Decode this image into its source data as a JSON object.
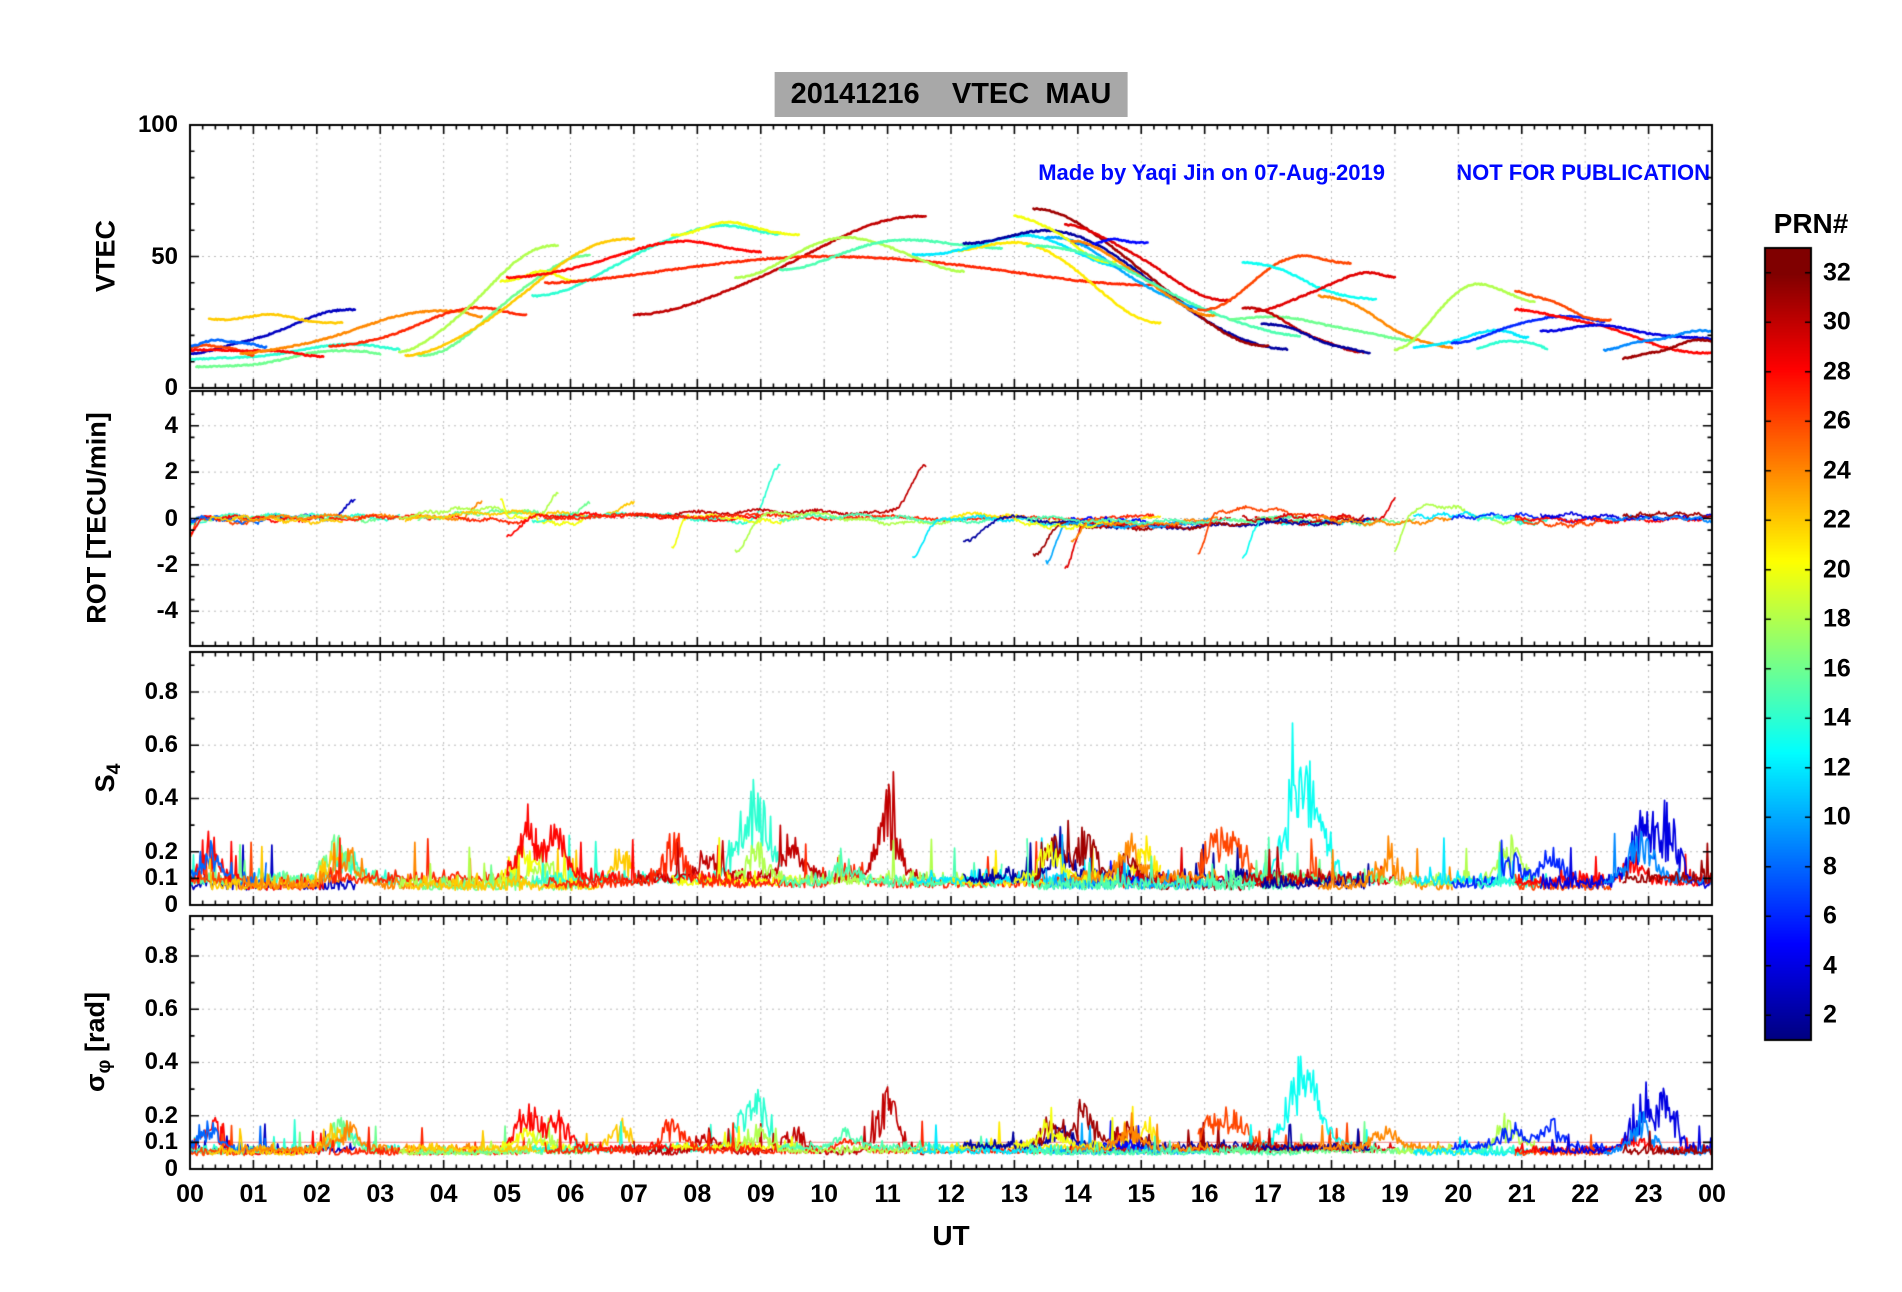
{
  "header": {
    "title": "20141216    VTEC  MAU",
    "made_by": "Made by Yaqi Jin on 07-Aug-2019",
    "warning": "NOT FOR PUBLICATION",
    "annotation_color": "#0008ff"
  },
  "chart_data": {
    "type": "line",
    "station": "MAU",
    "date": "20141216",
    "xlabel": "UT",
    "x_range": [
      0,
      24
    ],
    "x_tick_labels": [
      "00",
      "01",
      "02",
      "03",
      "04",
      "05",
      "06",
      "07",
      "08",
      "09",
      "10",
      "11",
      "12",
      "13",
      "14",
      "15",
      "16",
      "17",
      "18",
      "19",
      "20",
      "21",
      "22",
      "23",
      "00"
    ],
    "grid": true,
    "panels": [
      {
        "name": "vtec",
        "ylabel": "VTEC",
        "ylim": [
          0,
          100
        ],
        "yticks": [
          0,
          50,
          100
        ],
        "yminor": 10
      },
      {
        "name": "rot",
        "ylabel": "ROT [TECU/min]",
        "ylim": [
          -5.5,
          5.5
        ],
        "yticks": [
          -4,
          -2,
          0,
          2,
          4
        ],
        "yminor": 1
      },
      {
        "name": "s4",
        "ylabel_main": "S",
        "ylabel_sub": "4",
        "ylim": [
          0,
          0.95
        ],
        "yticks": [
          0,
          0.1,
          0.2,
          0.4,
          0.6,
          0.8
        ],
        "yminor": 0.1
      },
      {
        "name": "sigma_phi",
        "ylabel_main": "σ",
        "ylabel_sub": "φ",
        "ylabel_unit": " [rad]",
        "ylim": [
          0,
          0.95
        ],
        "yticks": [
          0,
          0.1,
          0.2,
          0.4,
          0.6,
          0.8
        ],
        "yminor": 0.1,
        "threshold": 0.1,
        "threshold_color": "#f0a0a0"
      }
    ],
    "colorbar": {
      "label": "PRN#",
      "colormap": "jet",
      "vmin": 1,
      "vmax": 33,
      "ticks": [
        2,
        4,
        6,
        8,
        10,
        12,
        14,
        16,
        18,
        20,
        22,
        24,
        26,
        28,
        30,
        32
      ]
    },
    "passes": [
      {
        "prn": 3,
        "t": [
          0,
          2.6
        ],
        "v": [
          13,
          30,
          30
        ],
        "tp": 1,
        "rs": [
          "e",
          0.9
        ]
      },
      {
        "prn": 14,
        "t": [
          0,
          3.3
        ],
        "v": [
          11,
          16,
          15
        ],
        "tp": 0.85,
        "rs": [
          "s",
          -0.35
        ],
        "s4": [
          [
            0.75,
            0.12
          ]
        ]
      },
      {
        "prn": 16,
        "t": [
          0.1,
          3.0
        ],
        "v": [
          8,
          14,
          13
        ],
        "tp": 0.9,
        "s4": [
          [
            0.78,
            0.2
          ]
        ]
      },
      {
        "prn": 26,
        "t": [
          0,
          1.0
        ],
        "v": [
          15,
          16,
          13
        ],
        "tp": 0.5,
        "rs": [
          "s",
          -0.7
        ]
      },
      {
        "prn": 28,
        "t": [
          0,
          2.1
        ],
        "v": [
          14,
          15,
          12
        ],
        "tp": 0.4,
        "rs": [
          "s",
          -0.6
        ],
        "s4": [
          [
            0.15,
            0.2
          ]
        ]
      },
      {
        "prn": 8,
        "t": [
          0,
          1.2
        ],
        "v": [
          16,
          18,
          16
        ],
        "tp": 0.5,
        "s4": [
          [
            0.25,
            0.16
          ]
        ]
      },
      {
        "prn": 22,
        "t": [
          0.3,
          2.4
        ],
        "v": [
          26,
          28,
          24
        ],
        "tp": 0.5,
        "s4": [
          [
            0.95,
            0.18
          ]
        ]
      },
      {
        "prn": 24,
        "t": [
          0.8,
          4.6
        ],
        "v": [
          13,
          30,
          28
        ],
        "tp": 0.9,
        "rs": [
          "e",
          0.7
        ],
        "s4": [
          [
            0.45,
            0.15
          ]
        ]
      },
      {
        "prn": 27,
        "t": [
          2.2,
          5.3
        ],
        "v": [
          16,
          30,
          28
        ],
        "tp": 0.8
      },
      {
        "prn": 18,
        "t": [
          3.3,
          5.8
        ],
        "v": [
          14,
          55,
          55
        ],
        "tp": 1,
        "rs": [
          "e",
          1.0
        ],
        "s4": [
          [
            0.9,
            0.12
          ]
        ]
      },
      {
        "prn": 16,
        "t": [
          3.6,
          6.3
        ],
        "v": [
          13,
          50,
          50
        ],
        "tp": 1,
        "rs": [
          "e",
          0.8
        ]
      },
      {
        "prn": 22,
        "t": [
          3.4,
          7.0
        ],
        "v": [
          13,
          57,
          57
        ],
        "tp": 1,
        "rs": [
          "e",
          0.8
        ],
        "s4": [
          [
            0.95,
            0.15
          ]
        ]
      },
      {
        "prn": 20,
        "t": [
          4.9,
          6.2
        ],
        "v": [
          40,
          44,
          41
        ],
        "tp": 0.5,
        "rs": [
          "s",
          0.9
        ],
        "s4": [
          [
            0.3,
            0.12
          ]
        ]
      },
      {
        "prn": 14,
        "t": [
          5.4,
          9.3
        ],
        "v": [
          35,
          62,
          58
        ],
        "tp": 0.75,
        "rs": [
          "e",
          2.3
        ],
        "s4": [
          [
            0.92,
            0.3
          ],
          [
            0.85,
            0.2
          ]
        ]
      },
      {
        "prn": 28,
        "t": [
          5.0,
          9.0
        ],
        "v": [
          42,
          55,
          52
        ],
        "tp": 0.7,
        "rs": [
          "s",
          -0.7
        ],
        "s4": [
          [
            0.08,
            0.25
          ],
          [
            0.2,
            0.2
          ]
        ]
      },
      {
        "prn": 30,
        "t": [
          7.0,
          11.6
        ],
        "v": [
          28,
          65,
          65
        ],
        "tp": 1,
        "rs": [
          "e",
          2.2
        ],
        "s4": [
          [
            0.87,
            0.35
          ],
          [
            0.55,
            0.15
          ],
          [
            0.25,
            0.12
          ]
        ]
      },
      {
        "prn": 20,
        "t": [
          7.6,
          9.6
        ],
        "v": [
          58,
          63,
          58
        ],
        "tp": 0.5,
        "rs": [
          "s",
          -1.2
        ]
      },
      {
        "prn": 27,
        "t": [
          5.6,
          15.2
        ],
        "v": [
          40,
          50,
          40
        ],
        "tp": 0.45,
        "s4": [
          [
            0.21,
            0.2
          ],
          [
            0.5,
            0.08
          ]
        ]
      },
      {
        "prn": 18,
        "t": [
          8.6,
          12.2
        ],
        "v": [
          42,
          58,
          44
        ],
        "tp": 0.5,
        "rs": [
          "s",
          -1.4
        ],
        "s4": [
          [
            0.1,
            0.14
          ]
        ]
      },
      {
        "prn": 15,
        "t": [
          9.3,
          12.8
        ],
        "v": [
          45,
          57,
          53
        ],
        "tp": 0.6,
        "s4": [
          [
            0.3,
            0.1
          ]
        ]
      },
      {
        "prn": 21,
        "t": [
          12.0,
          15.3
        ],
        "v": [
          52,
          56,
          25
        ],
        "tp": 0.3,
        "s4": [
          [
            0.93,
            0.15
          ]
        ]
      },
      {
        "prn": 12,
        "t": [
          11.4,
          14.9
        ],
        "v": [
          50,
          58,
          45
        ],
        "tp": 0.5,
        "rs": [
          "s",
          -1.5
        ]
      },
      {
        "prn": 2,
        "t": [
          12.2,
          17.3
        ],
        "v": [
          55,
          60,
          14
        ],
        "tp": 0.25,
        "rs": [
          "s",
          -0.9
        ],
        "s4": [
          [
            0.3,
            0.12
          ]
        ]
      },
      {
        "prn": 31,
        "t": [
          13.3,
          17.0
        ],
        "v": [
          68,
          68,
          16
        ],
        "tp": 0,
        "rs": [
          "s",
          -1.5
        ],
        "s4": [
          [
            0.08,
            0.2
          ],
          [
            0.22,
            0.25
          ],
          [
            0.4,
            0.15
          ]
        ]
      },
      {
        "prn": 29,
        "t": [
          13.8,
          16.4
        ],
        "v": [
          62,
          62,
          33
        ],
        "tp": 0,
        "rs": [
          "s",
          -2.0
        ]
      },
      {
        "prn": 5,
        "t": [
          13.9,
          15.1
        ],
        "v": [
          55,
          56,
          55
        ],
        "tp": 0.5
      },
      {
        "prn": 10,
        "t": [
          13.5,
          16.1
        ],
        "v": [
          57,
          57,
          30
        ],
        "tp": 0,
        "rs": [
          "s",
          -1.8
        ]
      },
      {
        "prn": 20,
        "t": [
          13.0,
          14.6
        ],
        "v": [
          65,
          65,
          48
        ],
        "tp": 0,
        "s4": [
          [
            0.35,
            0.14
          ]
        ]
      },
      {
        "prn": 24,
        "t": [
          13.9,
          16.2
        ],
        "v": [
          55,
          55,
          28
        ],
        "tp": 0,
        "rs": [
          "s",
          -1.0
        ],
        "s4": [
          [
            0.4,
            0.15
          ]
        ]
      },
      {
        "prn": 15,
        "t": [
          13.2,
          17.5
        ],
        "v": [
          55,
          55,
          20
        ],
        "tp": 0
      },
      {
        "prn": 26,
        "t": [
          15.9,
          18.3
        ],
        "v": [
          29,
          51,
          47
        ],
        "tp": 0.7,
        "rs": [
          "s",
          -1.5
        ],
        "s4": [
          [
            0.1,
            0.2
          ],
          [
            0.25,
            0.18
          ]
        ]
      },
      {
        "prn": 13,
        "t": [
          16.6,
          18.7
        ],
        "v": [
          48,
          48,
          33
        ],
        "tp": 0,
        "rs": [
          "s",
          -1.7
        ],
        "s4": [
          [
            0.38,
            0.35
          ],
          [
            0.48,
            0.28
          ],
          [
            0.58,
            0.18
          ]
        ]
      },
      {
        "prn": 29,
        "t": [
          16.8,
          19.0
        ],
        "v": [
          30,
          43,
          42
        ],
        "tp": 0.8,
        "rs": [
          "e",
          0.9
        ]
      },
      {
        "prn": 16,
        "t": [
          16.4,
          19.3
        ],
        "v": [
          26,
          27,
          18
        ],
        "tp": 0.3
      },
      {
        "prn": 30,
        "t": [
          16.6,
          18.5
        ],
        "v": [
          30,
          30,
          14
        ],
        "tp": 0
      },
      {
        "prn": 2,
        "t": [
          16.9,
          18.6
        ],
        "v": [
          25,
          25,
          13
        ],
        "tp": 0
      },
      {
        "prn": 24,
        "t": [
          17.8,
          19.9
        ],
        "v": [
          35,
          35,
          15
        ],
        "tp": 0,
        "s4": [
          [
            0.5,
            0.12
          ]
        ]
      },
      {
        "prn": 18,
        "t": [
          19.0,
          21.2
        ],
        "v": [
          15,
          40,
          33
        ],
        "tp": 0.6,
        "rs": [
          "s",
          -1.5
        ],
        "s4": [
          [
            0.82,
            0.2
          ]
        ]
      },
      {
        "prn": 12,
        "t": [
          19.3,
          21.1
        ],
        "v": [
          15,
          22,
          20
        ],
        "tp": 0.8
      },
      {
        "prn": 6,
        "t": [
          19.9,
          22.3
        ],
        "v": [
          18,
          27,
          25
        ],
        "tp": 0.7,
        "s4": [
          [
            0.4,
            0.12
          ],
          [
            0.65,
            0.15
          ]
        ]
      },
      {
        "prn": 14,
        "t": [
          20.3,
          21.4
        ],
        "v": [
          16,
          18,
          15
        ],
        "tp": 0.5
      },
      {
        "prn": 26,
        "t": [
          20.9,
          22.4
        ],
        "v": [
          37,
          37,
          25
        ],
        "tp": 0
      },
      {
        "prn": 28,
        "t": [
          20.9,
          24
        ],
        "v": [
          30,
          30,
          13
        ],
        "tp": 0,
        "s4": [
          [
            0.6,
            0.1
          ]
        ]
      },
      {
        "prn": 4,
        "t": [
          21.3,
          24
        ],
        "v": [
          22,
          24,
          18
        ],
        "tp": 0.3,
        "s4": [
          [
            0.59,
            0.3
          ],
          [
            0.74,
            0.3
          ]
        ]
      },
      {
        "prn": 9,
        "t": [
          22.3,
          24
        ],
        "v": [
          15,
          22,
          22
        ],
        "tp": 1,
        "s4": [
          [
            0.35,
            0.2
          ]
        ]
      },
      {
        "prn": 31,
        "t": [
          22.6,
          24
        ],
        "v": [
          12,
          18,
          18
        ],
        "tp": 1
      }
    ]
  }
}
